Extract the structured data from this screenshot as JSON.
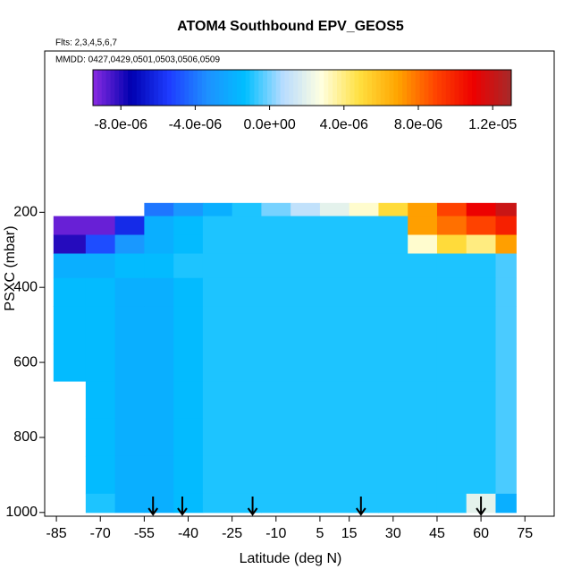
{
  "chart_data": {
    "type": "heatmap",
    "title": "ATOM4 Southbound EPV_GEOS5",
    "subtitle": "Flts: 2,3,4,5,6,7",
    "annotation": "MMDD: 0427,0429,0501,0503,0506,0509",
    "x_label": "Latitude (deg N)",
    "y_label": "PSXC (mbar)",
    "xlim": [
      -89,
      85
    ],
    "xticks": [
      -85,
      -70,
      -55,
      -40,
      -25,
      -10,
      5,
      15,
      30,
      45,
      60,
      75
    ],
    "ylim": [
      1010,
      -230
    ],
    "yticks": [
      200,
      400,
      600,
      800,
      1000
    ],
    "clim": [
      -9.5e-06,
      1.3e-05
    ],
    "cticks": [
      {
        "value": -8e-06,
        "label": "-8.0e-06"
      },
      {
        "value": -4e-06,
        "label": "-4.0e-06"
      },
      {
        "value": 0,
        "label": "0.0e+00"
      },
      {
        "value": 4e-06,
        "label": "4.0e-06"
      },
      {
        "value": 8e-06,
        "label": "8.0e-06"
      },
      {
        "value": 1.2e-05,
        "label": "1.2e-05"
      }
    ],
    "colorscale": [
      "#8a2be2",
      "#0000b0",
      "#1e3cff",
      "#1e90ff",
      "#00bfff",
      "#b8dcff",
      "#ffffe0",
      "#ffe040",
      "#ffa500",
      "#ff4500",
      "#ee0000",
      "#a52a2a"
    ],
    "x_bins": [
      -86,
      -75,
      -65,
      -55,
      -45,
      -35,
      -25,
      -15,
      -5,
      5,
      15,
      25,
      35,
      45,
      55,
      65,
      72
    ],
    "y_bins": [
      175,
      210,
      260,
      310,
      375,
      450,
      550,
      650,
      750,
      850,
      950,
      1000
    ],
    "values": [
      [
        null,
        null,
        null,
        -4e-06,
        -3e-06,
        -2e-06,
        -1e-06,
        0,
        1e-06,
        2e-06,
        3e-06,
        5e-06,
        7e-06,
        9e-06,
        1.1e-05,
        1.2e-05
      ],
      [
        -9e-06,
        -9e-06,
        -6e-06,
        -2e-06,
        -1.5e-06,
        -1e-06,
        -1e-06,
        -1e-06,
        -1e-06,
        -1e-06,
        -1e-06,
        -1e-06,
        7e-06,
        8e-06,
        9e-06,
        1e-05
      ],
      [
        -8e-06,
        -5e-06,
        -3e-06,
        -2e-06,
        -1.5e-06,
        -1e-06,
        -1e-06,
        -1e-06,
        -1e-06,
        -1e-06,
        -1e-06,
        -1e-06,
        3e-06,
        5e-06,
        4e-06,
        7e-06
      ],
      [
        -2e-06,
        -2e-06,
        -1.5e-06,
        -1.5e-06,
        -1e-06,
        -1e-06,
        -1e-06,
        -1e-06,
        -1e-06,
        -1e-06,
        -1e-06,
        -1e-06,
        -1e-06,
        -1e-06,
        -1e-06,
        -5e-07
      ],
      [
        -1.5e-06,
        -1.5e-06,
        -2e-06,
        -2e-06,
        -1.5e-06,
        -1e-06,
        -1e-06,
        -1e-06,
        -1e-06,
        -1e-06,
        -1e-06,
        -1e-06,
        -1e-06,
        -1e-06,
        -1e-06,
        -5e-07
      ],
      [
        -1.5e-06,
        -1.5e-06,
        -2e-06,
        -2e-06,
        -1.5e-06,
        -1e-06,
        -1e-06,
        -1e-06,
        -1e-06,
        -1e-06,
        -1e-06,
        -1e-06,
        -1e-06,
        -1e-06,
        -1e-06,
        -5e-07
      ],
      [
        -1.5e-06,
        -1.5e-06,
        -2e-06,
        -2e-06,
        -1.5e-06,
        -1e-06,
        -1e-06,
        -1e-06,
        -1e-06,
        -1e-06,
        -1e-06,
        -1e-06,
        -1e-06,
        -1e-06,
        -1e-06,
        -5e-07
      ],
      [
        null,
        -1.5e-06,
        -2e-06,
        -2e-06,
        -1.5e-06,
        -1e-06,
        -1e-06,
        -1e-06,
        -1e-06,
        -1e-06,
        -1e-06,
        -1e-06,
        -1e-06,
        -1e-06,
        -1e-06,
        -5e-07
      ],
      [
        null,
        -1.5e-06,
        -2e-06,
        -2e-06,
        -1.5e-06,
        -1e-06,
        -1e-06,
        -1e-06,
        -1e-06,
        -1e-06,
        -1e-06,
        -1e-06,
        -1e-06,
        -1e-06,
        -1e-06,
        -5e-07
      ],
      [
        null,
        -1.5e-06,
        -2e-06,
        -2e-06,
        -1.5e-06,
        -1e-06,
        -1e-06,
        -1e-06,
        -1e-06,
        -1e-06,
        -1e-06,
        -1e-06,
        -1e-06,
        -1e-06,
        -1e-06,
        -5e-07
      ],
      [
        null,
        -1e-06,
        -2e-06,
        -2e-06,
        -1.5e-06,
        -1e-06,
        -1e-06,
        -1e-06,
        -1e-06,
        -1e-06,
        -1e-06,
        -1e-06,
        -1e-06,
        -1e-06,
        2e-06,
        -2e-06
      ]
    ],
    "arrow_lats": [
      -52,
      -42,
      -18,
      19,
      60
    ]
  }
}
